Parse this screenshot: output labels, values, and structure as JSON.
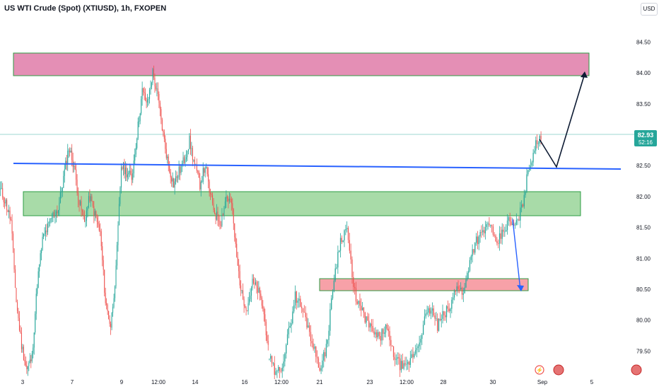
{
  "header": {
    "title": "US WTI Crude (Spot) (XTIUSD), 1h, FXOPEN",
    "currency": "USD"
  },
  "colors": {
    "up": "#26a69a",
    "down": "#ef5350",
    "trendline": "#2962ff",
    "supply_zone": "#e48fb5",
    "demand_zone": "#a8dba8",
    "small_zone": "#f7a1a8",
    "zone_border": "#2e9e44",
    "price_label_bg": "#26a69a",
    "projection": "#0d1b33"
  },
  "price_label": {
    "price": "82.93",
    "countdown": "52:16"
  },
  "event_icons": [
    "flash-icon",
    "us-flag-icon",
    "us-flag-icon"
  ],
  "chart_data": {
    "type": "candlestick",
    "y_axis": {
      "ticks": [
        79.5,
        80.0,
        80.5,
        81.0,
        81.5,
        82.0,
        82.5,
        83.0,
        83.5,
        84.0,
        84.5
      ],
      "ylim": [
        79.07,
        85.18
      ],
      "side": "right"
    },
    "x_axis": {
      "tick_labels": [
        "3",
        "7",
        "9",
        "12:00",
        "14",
        "16",
        "12:00",
        "21",
        "23",
        "12:00",
        "28",
        "30",
        "Sep",
        "5"
      ]
    },
    "series": [
      {
        "segment": 1,
        "close": [
          82.1,
          81.9,
          81.6,
          80.3,
          79.6,
          79.2,
          79.4,
          80.6,
          81.3,
          81.5,
          81.7,
          81.8,
          82.3,
          82.8,
          82.5,
          81.9,
          81.6,
          82.0,
          81.7,
          81.4,
          80.3,
          79.9,
          80.8,
          82.5,
          82.4,
          82.3,
          83.0,
          83.7,
          83.5,
          84.0,
          83.6,
          83.0,
          82.5,
          82.2,
          82.4,
          82.6,
          82.9,
          82.5,
          82.2,
          82.5,
          82.0,
          81.7,
          81.6,
          82.0,
          81.9,
          81.0,
          80.4,
          80.2,
          80.6,
          80.5,
          80.2,
          79.6
        ]
      },
      {
        "segment": 2,
        "close": [
          79.4,
          79.1,
          79.3,
          79.8,
          80.4,
          80.2,
          79.9,
          79.5,
          79.2,
          79.7,
          80.7,
          81.3,
          81.5,
          80.5,
          80.2,
          80.0,
          79.8,
          79.7,
          79.9,
          79.5,
          79.3,
          79.2,
          79.4,
          79.6,
          80.0,
          80.2,
          79.9,
          80.1,
          80.2,
          80.6,
          80.4,
          81.0,
          81.3,
          81.4,
          81.6,
          81.2,
          81.4,
          81.6,
          81.5,
          81.8,
          82.4,
          82.8,
          82.93
        ]
      }
    ],
    "zones": [
      {
        "name": "supply-zone",
        "color": "pink",
        "low": 83.9,
        "high": 84.3,
        "from": "Aug 2",
        "to": "Sep 3"
      },
      {
        "name": "demand-zone",
        "color": "green",
        "low": 81.62,
        "high": 82.0,
        "from": "Aug 3",
        "to": "Sep 3"
      },
      {
        "name": "small-zone",
        "color": "red",
        "low": 80.42,
        "high": 80.62,
        "from": "Aug 21",
        "to": "Sep 1"
      }
    ],
    "trendline": {
      "from": "Aug 2",
      "to": "Sep 5",
      "start": 82.48,
      "end": 82.38
    },
    "projection": {
      "points": [
        82.93,
        82.45,
        83.98
      ]
    },
    "grid": false,
    "last_price": 82.93
  }
}
